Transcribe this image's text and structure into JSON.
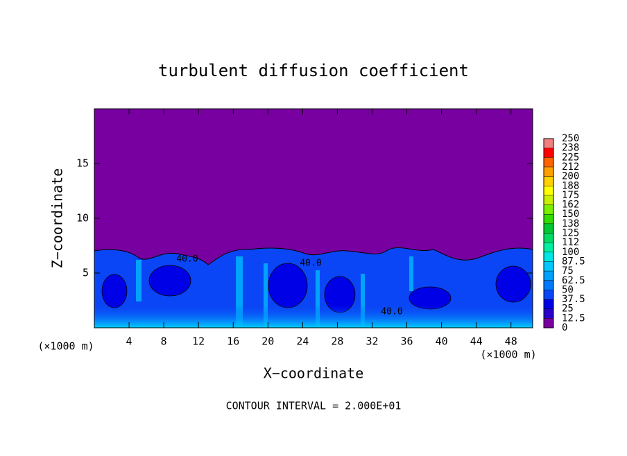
{
  "chart_data": {
    "type": "heatmap",
    "title": "turbulent diffusion coefficient",
    "x_label": "X−coordinate",
    "y_label": "Z−coordinate",
    "x_unit_label": "(×1000 m)",
    "annotation": "CONTOUR INTERVAL = 2.000E+01",
    "contour_labels": [
      "40.0",
      "40.0",
      "40.0"
    ],
    "xlim": [
      0,
      50.5
    ],
    "ylim": [
      0,
      20
    ],
    "xticks": [
      4,
      8,
      12,
      16,
      20,
      24,
      28,
      32,
      36,
      40,
      44,
      48
    ],
    "yticks": [
      5,
      10,
      15
    ],
    "colorbar_ticks": [
      0,
      12.5,
      25,
      37.5,
      50,
      62.5,
      75,
      87.5,
      100,
      {
        "value": 112.5,
        "label": "112"
      },
      125,
      {
        "value": 137.5,
        "label": "138"
      },
      150,
      {
        "value": 162.5,
        "label": "162"
      },
      175,
      {
        "value": 187.5,
        "label": "188"
      },
      200,
      {
        "value": 212.5,
        "label": "212"
      },
      225,
      {
        "value": 237.5,
        "label": "238"
      },
      250
    ],
    "colors": [
      "#7800a0",
      "#2800c8",
      "#0000e6",
      "#0a46f5",
      "#0078ff",
      "#00a0ff",
      "#00c8ff",
      "#00e6e6",
      "#00f0a0",
      "#00dc64",
      "#00c832",
      "#32dc00",
      "#78f000",
      "#c8f000",
      "#ffff00",
      "#ffd200",
      "#ffa000",
      "#ff6400",
      "#ff0000",
      "#f08080"
    ]
  }
}
